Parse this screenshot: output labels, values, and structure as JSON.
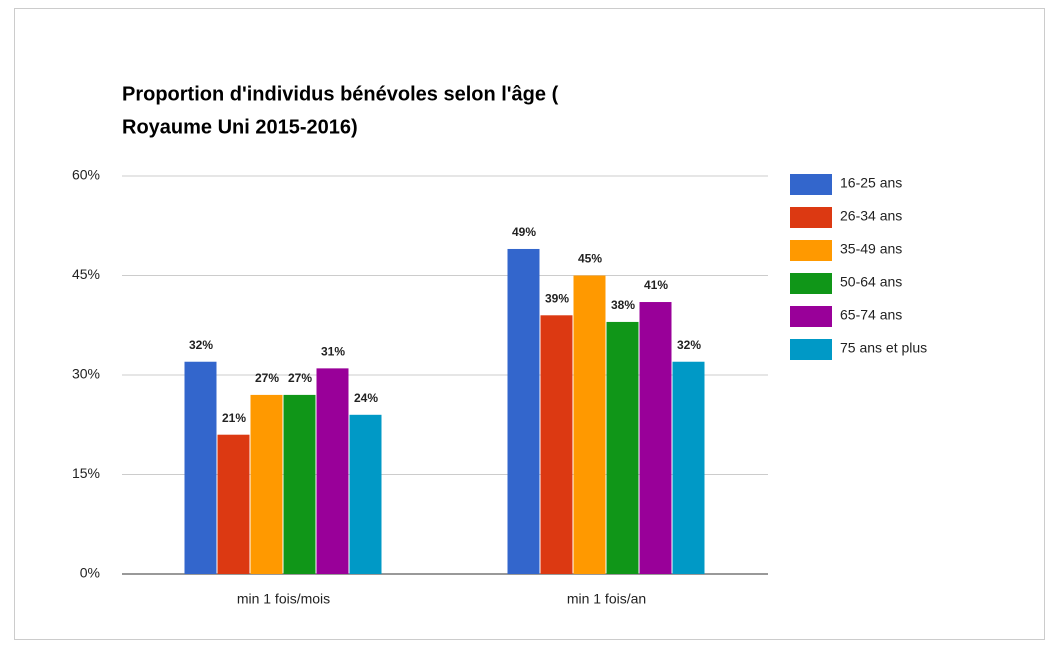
{
  "chart_data": {
    "type": "bar",
    "title": [
      "Proportion d'individus bénévoles selon l'âge (",
      "Royaume Uni 2015-2016)"
    ],
    "categories": [
      "min 1 fois/mois",
      "min 1 fois/an"
    ],
    "series": [
      {
        "name": "16-25 ans",
        "color": "#3366cc",
        "values": [
          32,
          49
        ],
        "value_labels": [
          "32%",
          "49%"
        ]
      },
      {
        "name": "26-34 ans",
        "color": "#dc3912",
        "values": [
          21,
          39
        ],
        "value_labels": [
          "21%",
          "39%"
        ]
      },
      {
        "name": "35-49 ans",
        "color": "#ff9900",
        "values": [
          27,
          45
        ],
        "value_labels": [
          "27%",
          "45%"
        ]
      },
      {
        "name": "50-64 ans",
        "color": "#109618",
        "values": [
          27,
          38
        ],
        "value_labels": [
          "27%",
          "38%"
        ]
      },
      {
        "name": "65-74 ans",
        "color": "#990099",
        "values": [
          31,
          41
        ],
        "value_labels": [
          "31%",
          "41%"
        ]
      },
      {
        "name": "75 ans et plus",
        "color": "#0099c6",
        "values": [
          24,
          32
        ],
        "value_labels": [
          "24%",
          "32%"
        ]
      }
    ],
    "ylim": [
      0,
      60
    ],
    "yticks": [
      {
        "value": 0,
        "label": "0%"
      },
      {
        "value": 15,
        "label": "15%"
      },
      {
        "value": 30,
        "label": "30%"
      },
      {
        "value": 45,
        "label": "45%"
      },
      {
        "value": 60,
        "label": "60%"
      }
    ],
    "grid": true,
    "legend": "right"
  }
}
